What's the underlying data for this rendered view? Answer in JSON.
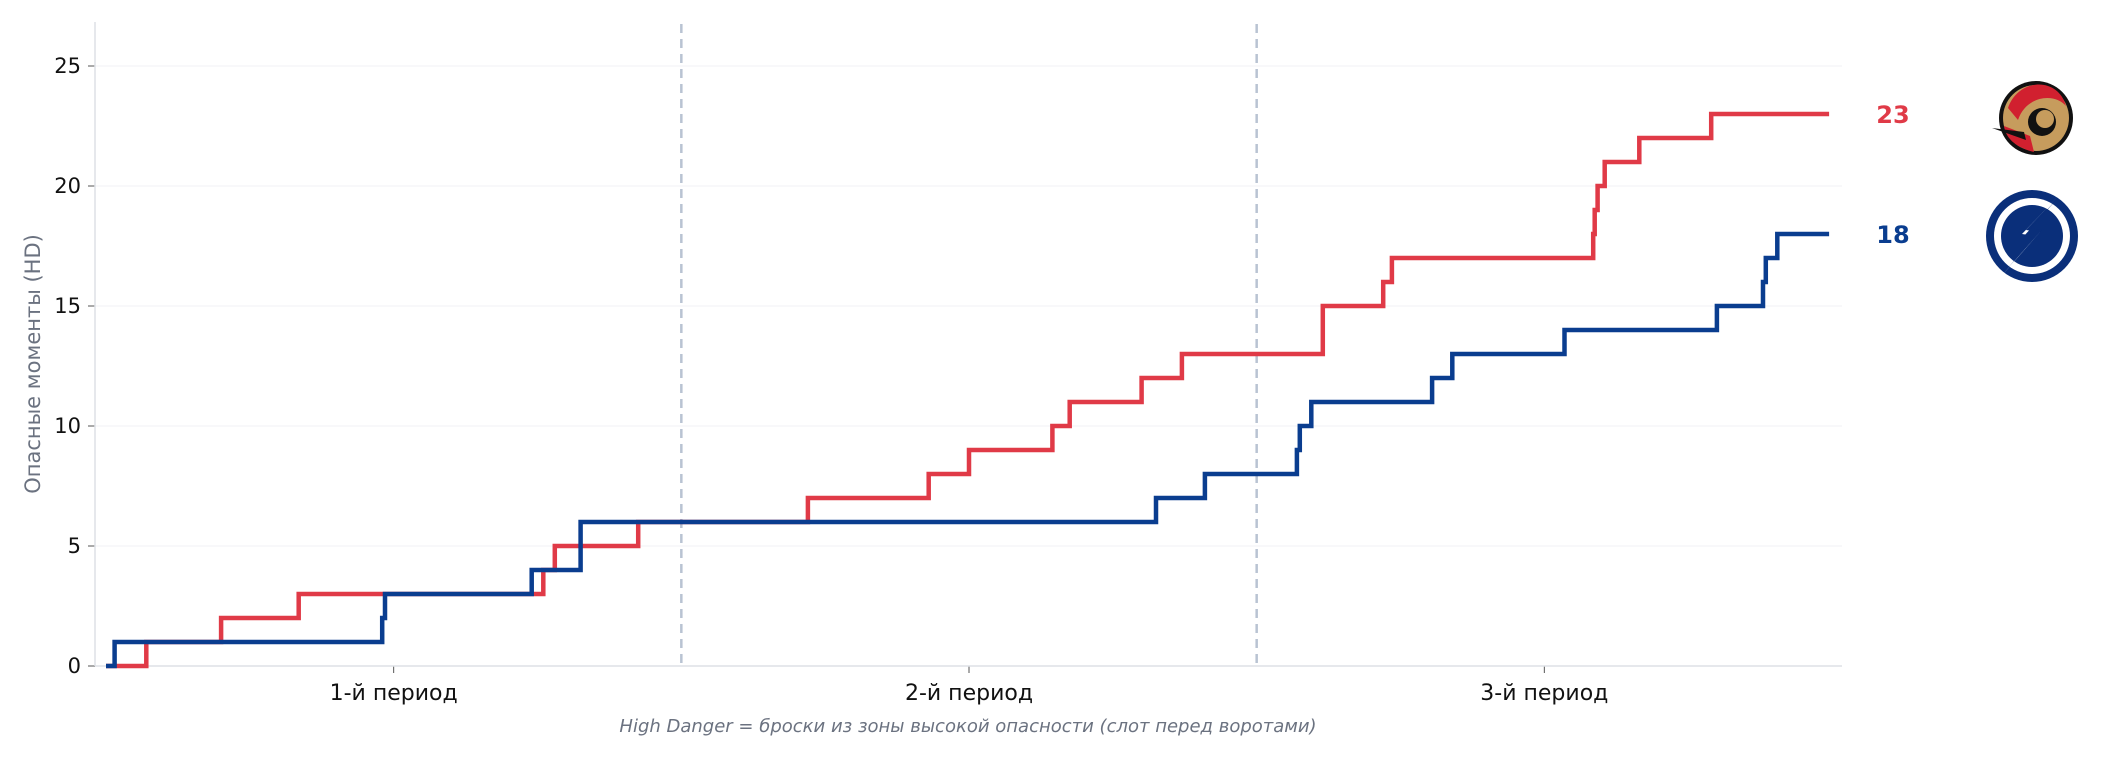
{
  "chart_data": {
    "type": "line",
    "subtype": "step",
    "title": "",
    "ylabel": "Опасные моменты (HD)",
    "xlabel": "",
    "caption": "High Danger = броски из зоны высокой опасности (слот перед воротами)",
    "xlim": [
      0,
      60
    ],
    "ylim": [
      0,
      27
    ],
    "yticks": [
      0,
      5,
      10,
      15,
      20,
      25
    ],
    "period_labels": [
      {
        "label": "1-й период",
        "x": 10
      },
      {
        "label": "2-й период",
        "x": 30
      },
      {
        "label": "3-й период",
        "x": 50
      }
    ],
    "period_dividers": [
      20,
      40
    ],
    "grid": true,
    "legend": "right",
    "series": [
      {
        "name": "Ottawa Senators",
        "team_icon": "senators-logo-icon",
        "color": "#e03a47",
        "final_label": "23",
        "points": [
          [
            0,
            0
          ],
          [
            1.4,
            1
          ],
          [
            4.0,
            2
          ],
          [
            6.7,
            3
          ],
          [
            15.2,
            4
          ],
          [
            15.6,
            5
          ],
          [
            18.5,
            6
          ],
          [
            24.4,
            7
          ],
          [
            28.6,
            8
          ],
          [
            30.0,
            9
          ],
          [
            32.9,
            10
          ],
          [
            33.5,
            11
          ],
          [
            36.0,
            12
          ],
          [
            37.4,
            13
          ],
          [
            42.3,
            15
          ],
          [
            44.4,
            16
          ],
          [
            44.7,
            17
          ],
          [
            51.7,
            18
          ],
          [
            51.75,
            19
          ],
          [
            51.85,
            20
          ],
          [
            52.1,
            21
          ],
          [
            53.3,
            22
          ],
          [
            55.8,
            23
          ],
          [
            59.9,
            23
          ]
        ]
      },
      {
        "name": "Tampa Bay Lightning",
        "team_icon": "lightning-logo-icon",
        "color": "#0a3d8f",
        "final_label": "18",
        "points": [
          [
            0,
            0
          ],
          [
            0.3,
            1
          ],
          [
            9.6,
            2
          ],
          [
            9.7,
            3
          ],
          [
            14.8,
            4
          ],
          [
            16.5,
            6
          ],
          [
            36.5,
            7
          ],
          [
            38.2,
            8
          ],
          [
            41.4,
            9
          ],
          [
            41.5,
            10
          ],
          [
            41.9,
            11
          ],
          [
            46.1,
            12
          ],
          [
            46.8,
            13
          ],
          [
            50.7,
            14
          ],
          [
            56.0,
            15
          ],
          [
            57.6,
            16
          ],
          [
            57.7,
            17
          ],
          [
            58.1,
            18
          ],
          [
            59.9,
            18
          ]
        ]
      }
    ]
  }
}
